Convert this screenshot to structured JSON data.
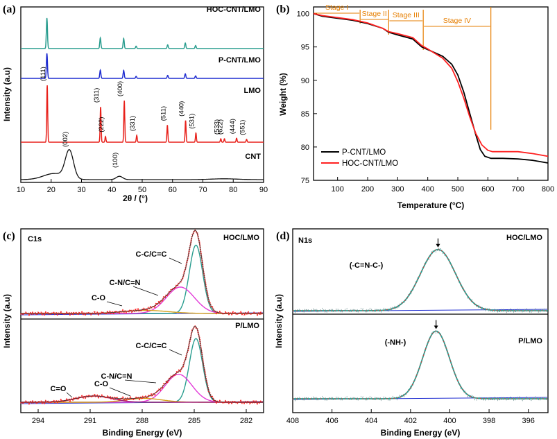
{
  "chart_data": [
    {
      "panel": "(a)",
      "type": "line",
      "xlabel": "2θ / (°)",
      "ylabel": "Intensity (a.u)",
      "xlim": [
        10,
        90
      ],
      "xticks": [
        "10",
        "20",
        "30",
        "40",
        "50",
        "60",
        "70",
        "80",
        "90"
      ],
      "series": [
        {
          "name": "HOC-CNT/LMO",
          "color": "#2a9d8f",
          "peaks": [
            [
              18.6,
              1.0
            ],
            [
              36.2,
              0.35
            ],
            [
              43.9,
              0.33
            ],
            [
              48.0,
              0.08
            ],
            [
              58.4,
              0.12
            ],
            [
              64.2,
              0.18
            ],
            [
              67.6,
              0.1
            ]
          ]
        },
        {
          "name": "P-CNT/LMO",
          "color": "#1f2dd0",
          "peaks": [
            [
              18.6,
              1.0
            ],
            [
              36.2,
              0.33
            ],
            [
              43.9,
              0.32
            ],
            [
              48.0,
              0.08
            ],
            [
              58.4,
              0.12
            ],
            [
              64.2,
              0.18
            ],
            [
              67.6,
              0.1
            ]
          ]
        },
        {
          "name": "LMO",
          "color": "#e8211b",
          "peaks": [
            [
              18.7,
              1.0
            ],
            [
              36.3,
              0.62
            ],
            [
              37.9,
              0.1
            ],
            [
              44.1,
              0.73
            ],
            [
              48.2,
              0.12
            ],
            [
              58.3,
              0.3
            ],
            [
              64.3,
              0.38
            ],
            [
              67.7,
              0.16
            ],
            [
              75.9,
              0.06
            ],
            [
              77.1,
              0.06
            ],
            [
              81.1,
              0.07
            ],
            [
              84.4,
              0.05
            ]
          ]
        },
        {
          "name": "CNT",
          "color": "#111111",
          "peaks": [
            [
              26.0,
              1.0
            ],
            [
              42.5,
              0.12
            ]
          ]
        }
      ],
      "peak_labels": [
        {
          "text": "(111)",
          "x": 18.7
        },
        {
          "text": "(311)",
          "x": 36.3
        },
        {
          "text": "(222)",
          "x": 37.9
        },
        {
          "text": "(400)",
          "x": 44.1
        },
        {
          "text": "(331)",
          "x": 48.2
        },
        {
          "text": "(511)",
          "x": 58.3
        },
        {
          "text": "(440)",
          "x": 64.3
        },
        {
          "text": "(531)",
          "x": 67.7
        },
        {
          "text": "(533)",
          "x": 75.9
        },
        {
          "text": "(622)",
          "x": 77.1
        },
        {
          "text": "(444)",
          "x": 81.1
        },
        {
          "text": "(551)",
          "x": 84.4
        },
        {
          "text": "(002)",
          "x": 26.0
        },
        {
          "text": "(100)",
          "x": 42.5
        }
      ]
    },
    {
      "panel": "(b)",
      "type": "line",
      "xlabel": "Temperature (°C)",
      "ylabel": "Weight (%)",
      "xlim": [
        20,
        800
      ],
      "ylim": [
        75,
        101
      ],
      "xticks": [
        "100",
        "200",
        "300",
        "400",
        "500",
        "600",
        "700",
        "800"
      ],
      "yticks": [
        "75",
        "80",
        "85",
        "90",
        "95",
        "100"
      ],
      "stages": [
        "Stage I",
        "Stage II",
        "Stage III",
        "Stage IV"
      ],
      "stage_bounds": [
        20,
        175,
        270,
        385,
        610
      ],
      "series": [
        {
          "name": "P-CNT/LMO",
          "color": "#000000",
          "x": [
            20,
            50,
            100,
            150,
            200,
            250,
            270,
            300,
            350,
            380,
            400,
            450,
            480,
            500,
            520,
            540,
            560,
            575,
            590,
            610,
            650,
            700,
            750,
            800
          ],
          "y": [
            100,
            99.6,
            99.3,
            99.0,
            98.5,
            97.8,
            97.2,
            96.8,
            96.2,
            95.0,
            94.6,
            93.6,
            92.4,
            90.8,
            88.2,
            85.0,
            81.8,
            79.6,
            78.6,
            78.3,
            78.3,
            78.2,
            78.0,
            77.6
          ]
        },
        {
          "name": "HOC-CNT/LMO",
          "color": "#ff2020",
          "x": [
            20,
            50,
            100,
            150,
            200,
            250,
            270,
            300,
            350,
            380,
            400,
            450,
            480,
            500,
            520,
            540,
            560,
            580,
            600,
            615,
            650,
            700,
            750,
            800
          ],
          "y": [
            100,
            99.7,
            99.4,
            99.1,
            98.6,
            97.8,
            97.3,
            97.0,
            96.4,
            95.2,
            94.7,
            93.3,
            91.8,
            89.8,
            87.3,
            84.5,
            82.0,
            80.3,
            79.5,
            79.3,
            79.3,
            79.3,
            79.0,
            78.6
          ]
        }
      ],
      "legend": "bottom-left"
    },
    {
      "panel": "(c)",
      "type": "line",
      "title": "C1s",
      "xlabel": "Binding Energy (eV)",
      "ylabel": "Intensity (a.u)",
      "xlim": [
        295,
        281
      ],
      "xticks": [
        "294",
        "291",
        "288",
        "285",
        "282"
      ],
      "subplots": [
        {
          "label": "HOC/LMO",
          "components": [
            {
              "name": "C-C/C=C",
              "center": 284.9,
              "fwhm": 0.9,
              "height": 0.88,
              "color": "#2a9d8f"
            },
            {
              "name": "C-N/C=N",
              "center": 285.8,
              "fwhm": 1.9,
              "height": 0.34,
              "color": "#e23ad8"
            },
            {
              "name": "C-O",
              "center": 287.8,
              "fwhm": 3.0,
              "height": 0.04,
              "color": "#d6a21e"
            }
          ]
        },
        {
          "label": "P/LMO",
          "components": [
            {
              "name": "C-C/C=C",
              "center": 284.9,
              "fwhm": 0.9,
              "height": 0.82,
              "color": "#2a9d8f"
            },
            {
              "name": "C-N/C=N",
              "center": 285.9,
              "fwhm": 1.8,
              "height": 0.36,
              "color": "#e23ad8"
            },
            {
              "name": "C-O",
              "center": 287.9,
              "fwhm": 2.4,
              "height": 0.05,
              "color": "#d6a21e"
            },
            {
              "name": "C=O",
              "center": 290.8,
              "fwhm": 2.4,
              "height": 0.08,
              "color": "#a0237f"
            }
          ]
        }
      ]
    },
    {
      "panel": "(d)",
      "type": "line",
      "title": "N1s",
      "xlabel": "Binding Energy (eV)",
      "ylabel": "Intensity (a.u)",
      "xlim": [
        408,
        395
      ],
      "xticks": [
        "408",
        "406",
        "404",
        "402",
        "400",
        "398",
        "396"
      ],
      "subplots": [
        {
          "label": "HOC/LMO",
          "group": "(-C=N-C-)",
          "center": 400.6,
          "fwhm": 2.1,
          "height": 0.9
        },
        {
          "label": "P/LMO",
          "group": "(-NH-)",
          "center": 400.7,
          "fwhm": 1.6,
          "height": 0.92
        }
      ]
    }
  ]
}
